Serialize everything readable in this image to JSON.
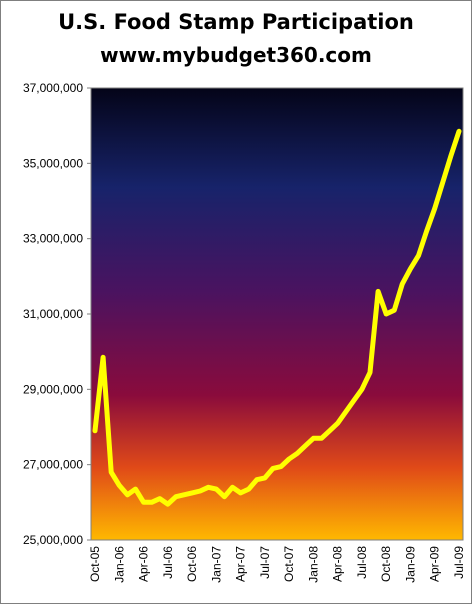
{
  "header": {
    "title": "U.S. Food Stamp Participation",
    "subtitle": "www.mybudget360.com"
  },
  "colors": {
    "line": "#ffff00",
    "background_top": "#040418",
    "background_mid_blue": "#1a2a7a",
    "background_mid_red": "#8a0a3a",
    "background_bottom": "#ffb000"
  },
  "chart_data": {
    "type": "line",
    "title": "U.S. Food Stamp Participation",
    "xlabel": "",
    "ylabel": "",
    "ylim": [
      25000000,
      37000000
    ],
    "yticks": [
      25000000,
      27000000,
      29000000,
      31000000,
      33000000,
      35000000,
      37000000
    ],
    "ytick_labels": [
      "25,000,000",
      "27,000,000",
      "29,000,000",
      "31,000,000",
      "33,000,000",
      "35,000,000",
      "37,000,000"
    ],
    "xtick_labels": [
      "Oct-05",
      "Jan-06",
      "Apr-06",
      "Jul-06",
      "Oct-06",
      "Jan-07",
      "Apr-07",
      "Jul-07",
      "Oct-07",
      "Jan-08",
      "Apr-08",
      "Jul-08",
      "Oct-08",
      "Jan-09",
      "Apr-09",
      "Jul-09"
    ],
    "x": [
      "Oct-05",
      "Nov-05",
      "Dec-05",
      "Jan-06",
      "Feb-06",
      "Mar-06",
      "Apr-06",
      "May-06",
      "Jun-06",
      "Jul-06",
      "Aug-06",
      "Sep-06",
      "Oct-06",
      "Nov-06",
      "Dec-06",
      "Jan-07",
      "Feb-07",
      "Mar-07",
      "Apr-07",
      "May-07",
      "Jun-07",
      "Jul-07",
      "Aug-07",
      "Sep-07",
      "Oct-07",
      "Nov-07",
      "Dec-07",
      "Jan-08",
      "Feb-08",
      "Mar-08",
      "Apr-08",
      "May-08",
      "Jun-08",
      "Jul-08",
      "Aug-08",
      "Sep-08",
      "Oct-08",
      "Nov-08",
      "Dec-08",
      "Jan-09",
      "Feb-09",
      "Mar-09",
      "Apr-09",
      "May-09",
      "Jun-09",
      "Jul-09"
    ],
    "series": [
      {
        "values": [
          27900000,
          29850000,
          26800000,
          26450000,
          26200000,
          26350000,
          26000000,
          26000000,
          26100000,
          25950000,
          26150000,
          26200000,
          26250000,
          26300000,
          26400000,
          26350000,
          26150000,
          26400000,
          26250000,
          26350000,
          26600000,
          26650000,
          26900000,
          26950000,
          27150000,
          27300000,
          27500000,
          27700000,
          27700000,
          27900000,
          28100000,
          28400000,
          28700000,
          29000000,
          29450000,
          31600000,
          31000000,
          31100000,
          31800000,
          32200000,
          32550000,
          33200000,
          33800000,
          34500000,
          35200000,
          35850000
        ]
      }
    ],
    "grid": false,
    "legend": "none"
  }
}
